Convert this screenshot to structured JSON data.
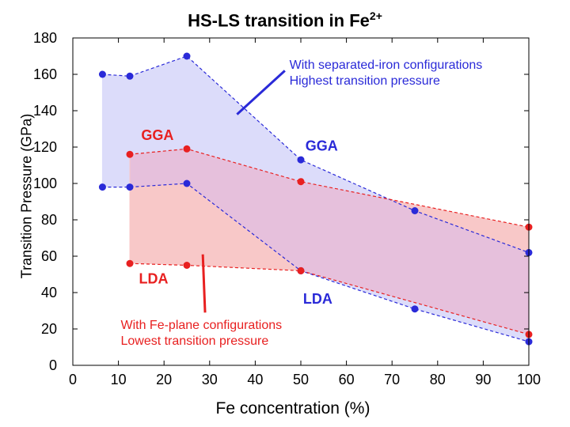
{
  "chart_data": {
    "type": "area",
    "title_text": "HS-LS transition in Fe",
    "title_superscript": "2+",
    "xlabel": "Fe concentration (%)",
    "ylabel": "Transition Pressure (GPa)",
    "xlim": [
      0,
      100
    ],
    "ylim": [
      0,
      180
    ],
    "x_ticks": [
      0,
      10,
      20,
      30,
      40,
      50,
      60,
      70,
      80,
      90,
      100
    ],
    "y_ticks": [
      0,
      20,
      40,
      60,
      80,
      100,
      120,
      140,
      160,
      180
    ],
    "grid": false,
    "colors": {
      "blue": "#2a2ad8",
      "red": "#e82020",
      "blue_fill": "#dcdcfa",
      "red_fill": "#f8c8c8",
      "overlap_fill": "#e6c0dc"
    },
    "series": [
      {
        "name": "GGA",
        "family": "blue",
        "bound": "upper",
        "x": [
          6.5,
          12.5,
          25,
          50,
          75,
          100
        ],
        "y": [
          160,
          159,
          170,
          113,
          85,
          62
        ]
      },
      {
        "name": "GGA",
        "family": "red",
        "bound": "upper",
        "x": [
          12.5,
          25,
          50,
          100
        ],
        "y": [
          116,
          119,
          101,
          76
        ]
      },
      {
        "name": "LDA",
        "family": "blue",
        "bound": "lower",
        "x": [
          6.5,
          12.5,
          25,
          50,
          75,
          100
        ],
        "y": [
          98,
          98,
          100,
          52,
          31,
          13
        ]
      },
      {
        "name": "LDA",
        "family": "red",
        "bound": "lower",
        "x": [
          12.5,
          25,
          50,
          100
        ],
        "y": [
          56,
          55,
          52,
          17
        ]
      }
    ],
    "labels": [
      {
        "text": "GGA",
        "family": "red",
        "x": 15,
        "y": 124
      },
      {
        "text": "GGA",
        "family": "blue",
        "x": 51,
        "y": 118
      },
      {
        "text": "LDA",
        "family": "red",
        "x": 14.5,
        "y": 45
      },
      {
        "text": "LDA",
        "family": "blue",
        "x": 50.5,
        "y": 34
      }
    ],
    "annotations": [
      {
        "lines": [
          "With separated-iron configurations",
          "Highest transition pressure"
        ],
        "color": "blue",
        "x": 47.5,
        "y": 163,
        "pointer": {
          "from": [
            46.5,
            162
          ],
          "to": [
            36,
            138
          ]
        }
      },
      {
        "lines": [
          "With Fe-plane configurations",
          "Lowest transition pressure"
        ],
        "color": "red",
        "x": 10.5,
        "y": 20,
        "pointer": {
          "from": [
            29,
            29
          ],
          "to": [
            28.5,
            61
          ]
        }
      }
    ]
  }
}
